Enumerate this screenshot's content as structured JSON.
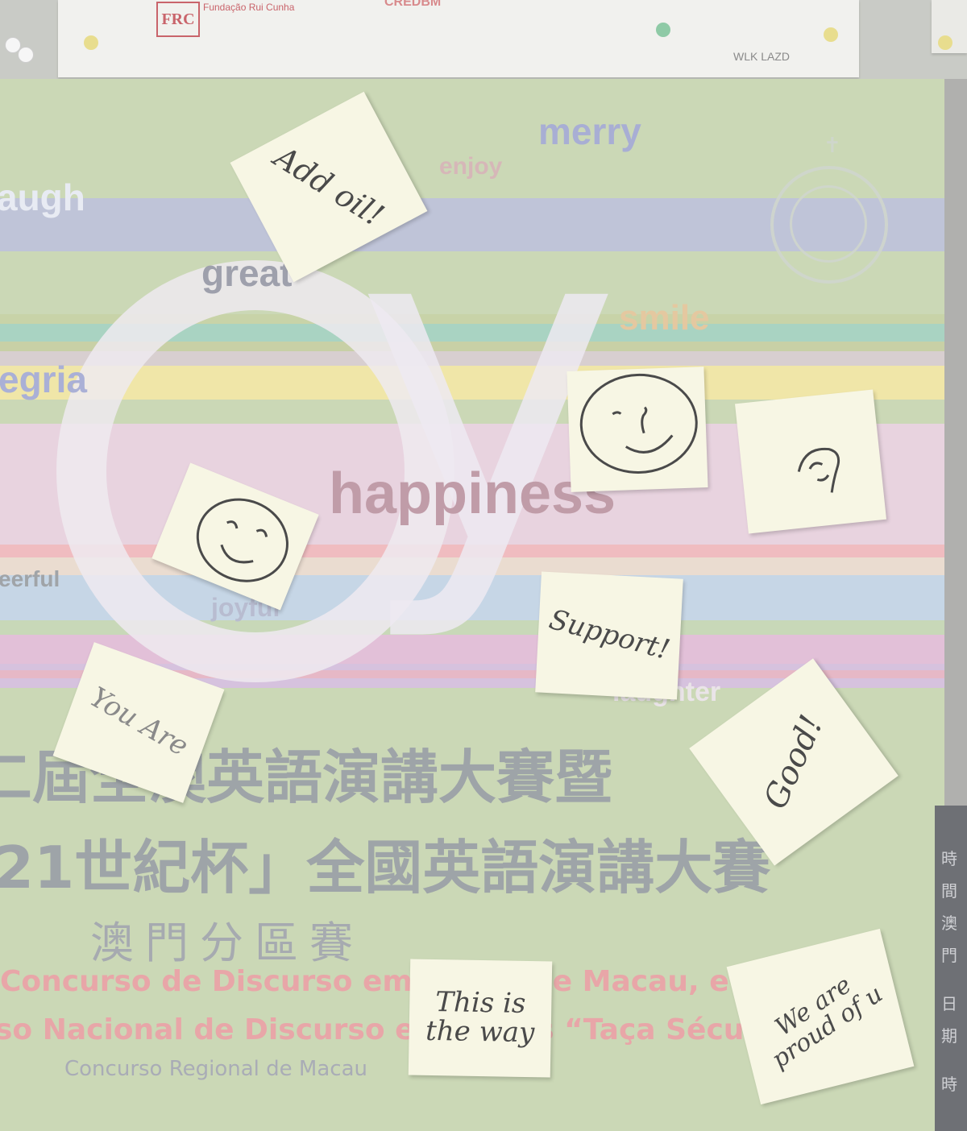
{
  "notice_board": {
    "left_notice": {
      "logo_text": "FRC",
      "org_text": "Fundação Rui Cunha",
      "other_logo_text": "CREDBM",
      "signature": "WLK LAZD"
    }
  },
  "poster": {
    "big_letters": {
      "o": "o",
      "y": "y"
    },
    "words": {
      "merry": "merry",
      "enjoy": "enjoy",
      "laugh": "augh",
      "great": "great",
      "smile": "smile",
      "alegria": "egria",
      "happiness": "happiness",
      "cheerful": "eerful",
      "joyful": "joyful",
      "laughter": "laughter"
    },
    "chinese_title_line1": "二屆全澳英語演講大賽暨",
    "chinese_title_line2": "21世紀杯」全國英語演講大賽",
    "chinese_subtitle": "澳門分區賽",
    "portuguese_line1": "Concurso de Discurso em Inglês de Macau, e",
    "portuguese_line2": "so Nacional de Discurso em Inglês “Taça Século",
    "portuguese_line3": "Concurso Regional de Macau"
  },
  "sticky_notes": {
    "add_oil": "Add oil!",
    "support": "Support!",
    "you_are": "You Are",
    "good": "Good!",
    "this_is_the_way": "This is the way",
    "proud": "We are proud of u"
  },
  "edge_text": [
    "時",
    "間",
    "澳",
    "門",
    "日",
    "期",
    "時"
  ],
  "colors": {
    "sticky_note": "#f7f6e4",
    "poster_bg": "#cbd8b6",
    "accent_pink_text": "#e8a6a8",
    "lavender_text": "#a8aed4"
  }
}
